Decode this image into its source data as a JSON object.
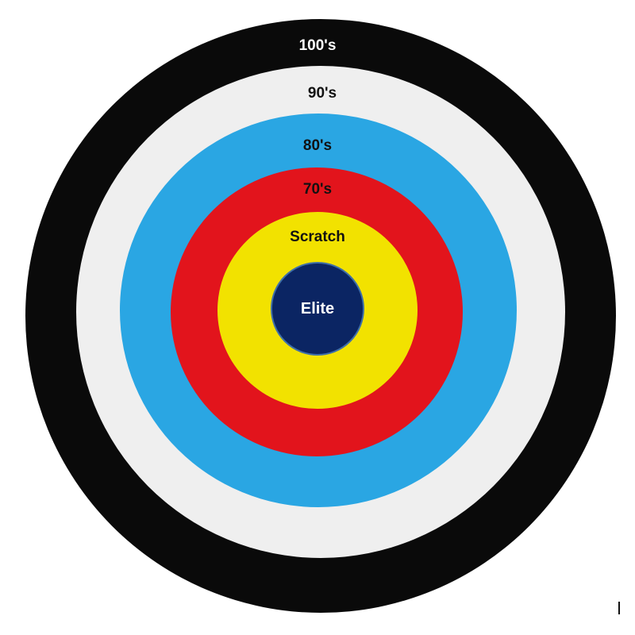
{
  "target": {
    "rings": [
      {
        "label": "100's",
        "fill": "#0a0a0a",
        "text_color": "#ffffff"
      },
      {
        "label": "90's",
        "fill": "#efefef",
        "text_color": "#111111"
      },
      {
        "label": "80's",
        "fill": "#2aa6e3",
        "text_color": "#111111"
      },
      {
        "label": "70's",
        "fill": "#e2141c",
        "text_color": "#111111"
      },
      {
        "label": "Scratch",
        "fill": "#f2e200",
        "text_color": "#111111"
      },
      {
        "label": "Elite",
        "fill": "#0b2563",
        "text_color": "#ffffff",
        "border": "#3f6fa8"
      }
    ]
  }
}
